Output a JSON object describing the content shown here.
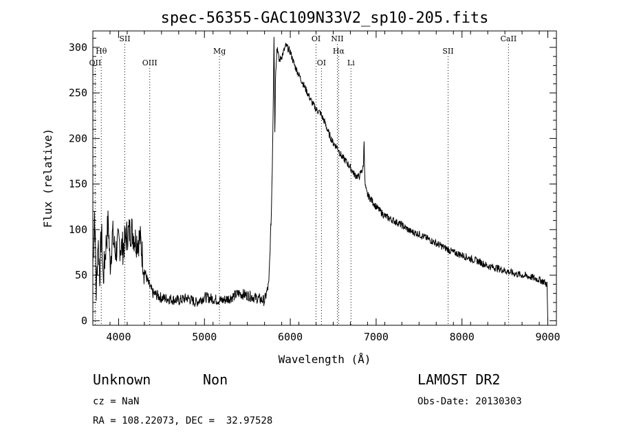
{
  "chart_data": {
    "type": "line",
    "title": "spec-56355-GAC109N33V2_sp10-205.fits",
    "xlabel": "Wavelength (Å)",
    "ylabel": "Flux (relative)",
    "xlim": [
      3700,
      9100
    ],
    "ylim": [
      -5,
      318
    ],
    "xticks": [
      4000,
      5000,
      6000,
      7000,
      8000,
      9000
    ],
    "yticks": [
      0,
      50,
      100,
      150,
      200,
      250,
      300
    ],
    "grid": false,
    "series": [
      {
        "x": [
          3700,
          3720,
          3740,
          3760,
          3780,
          3800,
          3820,
          3850,
          3880,
          3900,
          3930,
          3960,
          4000,
          4050,
          4100,
          4150,
          4200,
          4250,
          4280,
          4300,
          4350,
          4400,
          4450,
          4500,
          4600,
          4700,
          4800,
          4900,
          5000,
          5100,
          5200,
          5300,
          5400,
          5500,
          5600,
          5700,
          5750,
          5780,
          5790,
          5800,
          5810,
          5820,
          5830,
          5840,
          5850,
          5870,
          5900,
          5950,
          6000,
          6050,
          6100,
          6150,
          6200,
          6250,
          6300,
          6350,
          6400,
          6450,
          6500,
          6550,
          6600,
          6650,
          6700,
          6750,
          6800,
          6850,
          6860,
          6870,
          6880,
          6890,
          6900,
          6950,
          7000,
          7100,
          7200,
          7300,
          7400,
          7500,
          7600,
          7700,
          7800,
          7900,
          8000,
          8100,
          8200,
          8300,
          8400,
          8500,
          8600,
          8700,
          8800,
          8900,
          8950,
          8990,
          9000
        ],
        "values": [
          60,
          120,
          30,
          90,
          50,
          100,
          45,
          80,
          110,
          60,
          95,
          75,
          85,
          80,
          95,
          100,
          88,
          90,
          70,
          55,
          40,
          30,
          28,
          25,
          24,
          22,
          25,
          20,
          26,
          24,
          22,
          25,
          30,
          28,
          25,
          22,
          40,
          120,
          170,
          230,
          318,
          210,
          280,
          295,
          300,
          285,
          290,
          302,
          295,
          280,
          270,
          260,
          250,
          240,
          232,
          228,
          218,
          205,
          195,
          190,
          180,
          175,
          168,
          160,
          158,
          168,
          198,
          150,
          145,
          140,
          138,
          132,
          125,
          115,
          110,
          105,
          98,
          95,
          90,
          85,
          80,
          75,
          72,
          68,
          65,
          60,
          58,
          55,
          52,
          50,
          48,
          45,
          43,
          40,
          0
        ]
      }
    ],
    "emission_lines": [
      {
        "label": "OII",
        "x": 3727,
        "row": 3
      },
      {
        "label": "Hθ",
        "x": 3798,
        "row": 2
      },
      {
        "label": "SII",
        "x": 4072,
        "row": 1
      },
      {
        "label": "OIII",
        "x": 4363,
        "row": 3
      },
      {
        "label": "Mg",
        "x": 5175,
        "row": 2
      },
      {
        "label": "OI",
        "x": 6300,
        "row": 1
      },
      {
        "label": "OI",
        "x": 6363,
        "row": 3
      },
      {
        "label": "NII",
        "x": 6548,
        "row": 1
      },
      {
        "label": "Hα",
        "x": 6563,
        "row": 2
      },
      {
        "label": "Li",
        "x": 6707,
        "row": 3
      },
      {
        "label": "SII",
        "x": 7838,
        "row": 2
      },
      {
        "label": "CaII",
        "x": 8542,
        "row": 1
      }
    ]
  },
  "info": {
    "class": "Unknown",
    "subclass": "Non",
    "cz": "cz = NaN",
    "coords": "RA = 108.22073, DEC =  32.97528",
    "survey": "LAMOST DR2",
    "obs_date": "Obs-Date: 20130303"
  }
}
